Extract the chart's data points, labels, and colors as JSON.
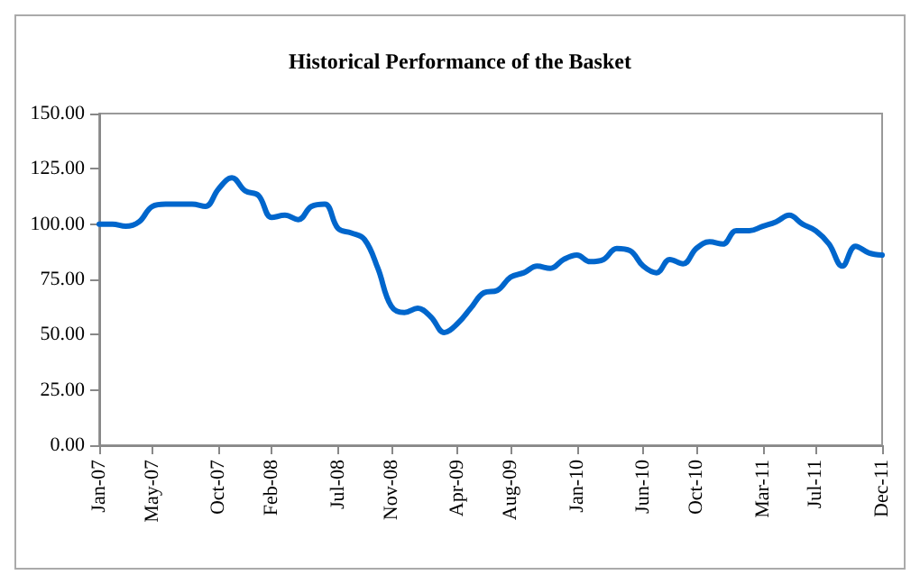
{
  "chart_data": {
    "type": "line",
    "title": "Historical Performance of the Basket",
    "categories": [
      "Jan-07",
      null,
      null,
      null,
      "May-07",
      null,
      null,
      null,
      null,
      "Oct-07",
      null,
      null,
      null,
      "Feb-08",
      null,
      null,
      null,
      null,
      "Jul-08",
      null,
      null,
      null,
      "Nov-08",
      null,
      null,
      null,
      null,
      "Apr-09",
      null,
      null,
      null,
      "Aug-09",
      null,
      null,
      null,
      null,
      "Jan-10",
      null,
      null,
      null,
      null,
      "Jun-10",
      null,
      null,
      null,
      "Oct-10",
      null,
      null,
      null,
      null,
      "Mar-11",
      null,
      null,
      null,
      "Jul-11",
      null,
      null,
      null,
      null,
      "Dec-11"
    ],
    "series": [
      {
        "color": "#0066cc",
        "values": [
          100,
          100,
          99,
          101,
          108,
          109,
          109,
          109,
          108,
          116,
          121,
          115,
          113,
          103,
          104,
          102,
          108,
          109,
          98,
          96,
          93,
          80,
          63,
          60,
          62,
          58,
          51,
          55,
          62,
          69,
          70,
          76,
          78,
          81,
          80,
          84,
          86,
          83,
          84,
          89,
          88,
          81,
          78,
          84,
          82,
          89,
          92,
          91,
          97,
          97,
          99,
          101,
          104,
          100,
          97,
          91,
          81,
          90,
          87,
          86
        ]
      }
    ],
    "ylim": [
      0,
      150
    ],
    "yticks": [
      {
        "value": 0,
        "label": "0.00"
      },
      {
        "value": 25,
        "label": "25.00"
      },
      {
        "value": 50,
        "label": "50.00"
      },
      {
        "value": 75,
        "label": "75.00"
      },
      {
        "value": 100,
        "label": "100.00"
      },
      {
        "value": 125,
        "label": "125.00"
      },
      {
        "value": 150,
        "label": "150.00"
      }
    ],
    "grid": false,
    "marker": "none",
    "line_style": "solid"
  }
}
